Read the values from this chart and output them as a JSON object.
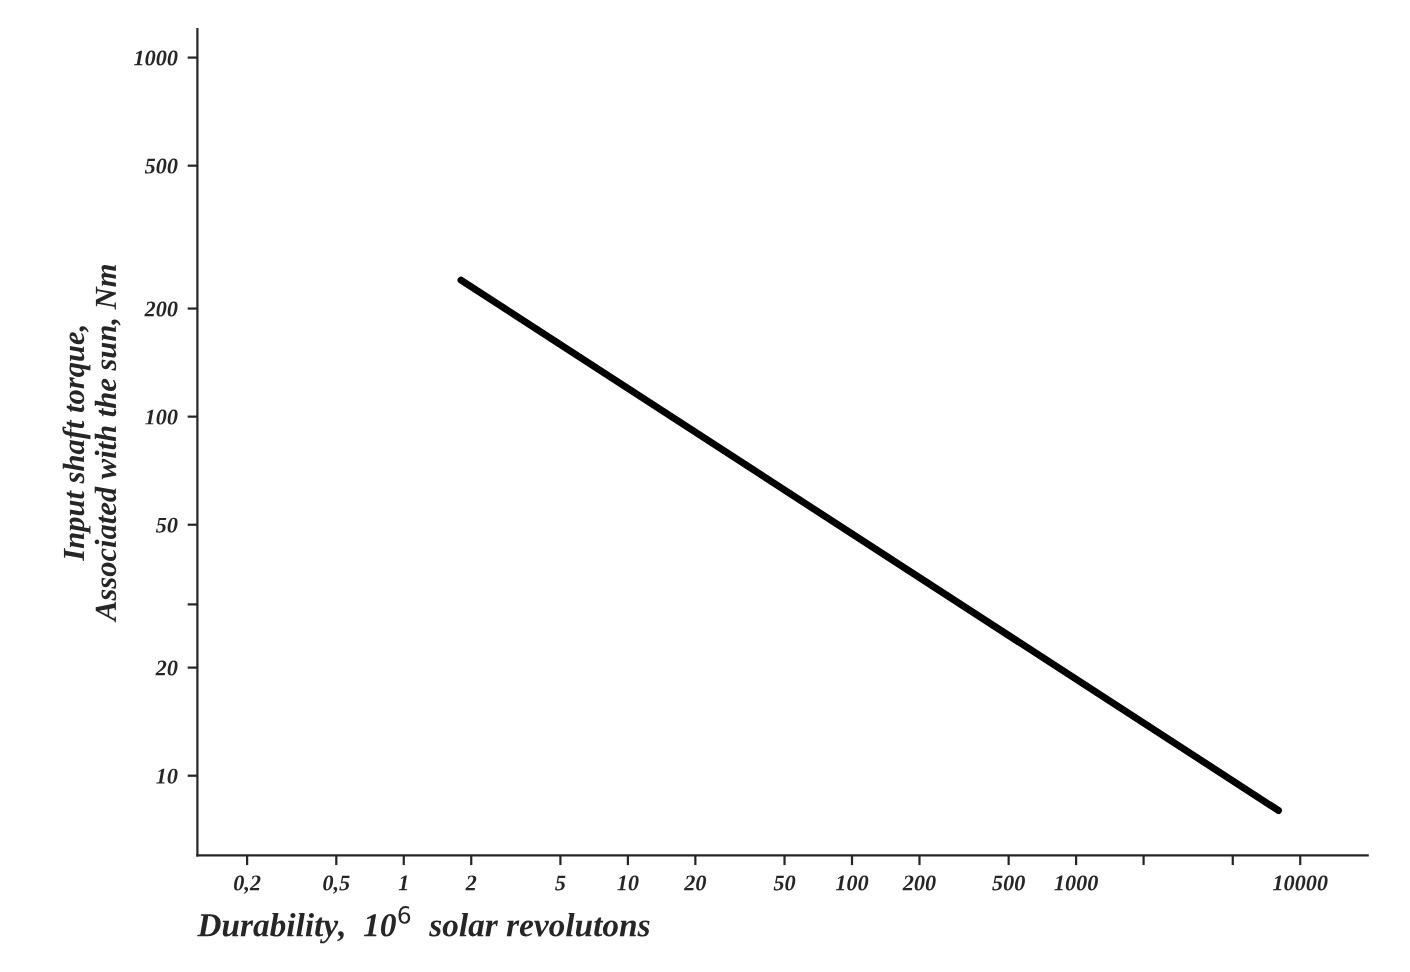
{
  "chart_data": {
    "type": "line",
    "log": "xy",
    "xlabel": "Durability,  10$^{6}$  solar revolutons",
    "ylabel": "Input shaft torque,\nAssociated with the sun, Nm",
    "series": [
      {
        "color": "#000000",
        "x": [
          1.8,
          8000
        ],
        "values": [
          240,
          8
        ]
      }
    ],
    "xlim": [
      0.12,
      20000
    ],
    "ylim": [
      6,
      1200
    ],
    "xticks": [
      {
        "value": 0.2,
        "label": "0,2"
      },
      {
        "value": 0.5,
        "label": "0,5"
      },
      1,
      2,
      5,
      10,
      20,
      50,
      100,
      200,
      500,
      1000,
      {
        "value": 2000,
        "label": null
      },
      {
        "value": 5000,
        "label": null
      },
      10000
    ],
    "yticks": [
      10,
      20,
      {
        "value": 30,
        "label": null
      },
      50,
      100,
      200,
      500,
      1000
    ],
    "grid": false,
    "legend": false,
    "marker": "none",
    "line_style": "solid"
  }
}
